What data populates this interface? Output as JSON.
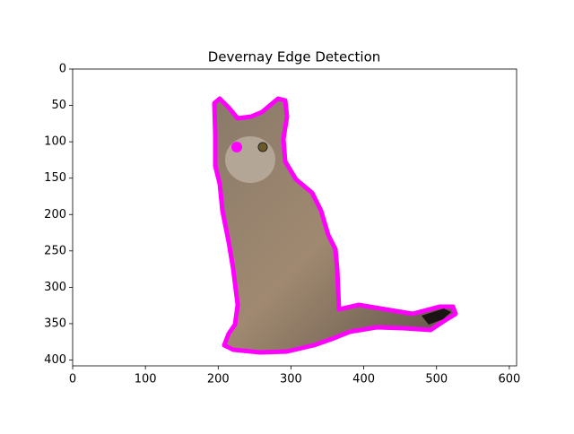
{
  "chart_data": {
    "type": "image",
    "title": "Devernay Edge Detection",
    "xlim": [
      0,
      610
    ],
    "ylim": [
      408,
      0
    ],
    "xticks": [
      0,
      100,
      200,
      300,
      400,
      500,
      600
    ],
    "yticks": [
      0,
      50,
      100,
      150,
      200,
      250,
      300,
      350,
      400
    ]
  }
}
